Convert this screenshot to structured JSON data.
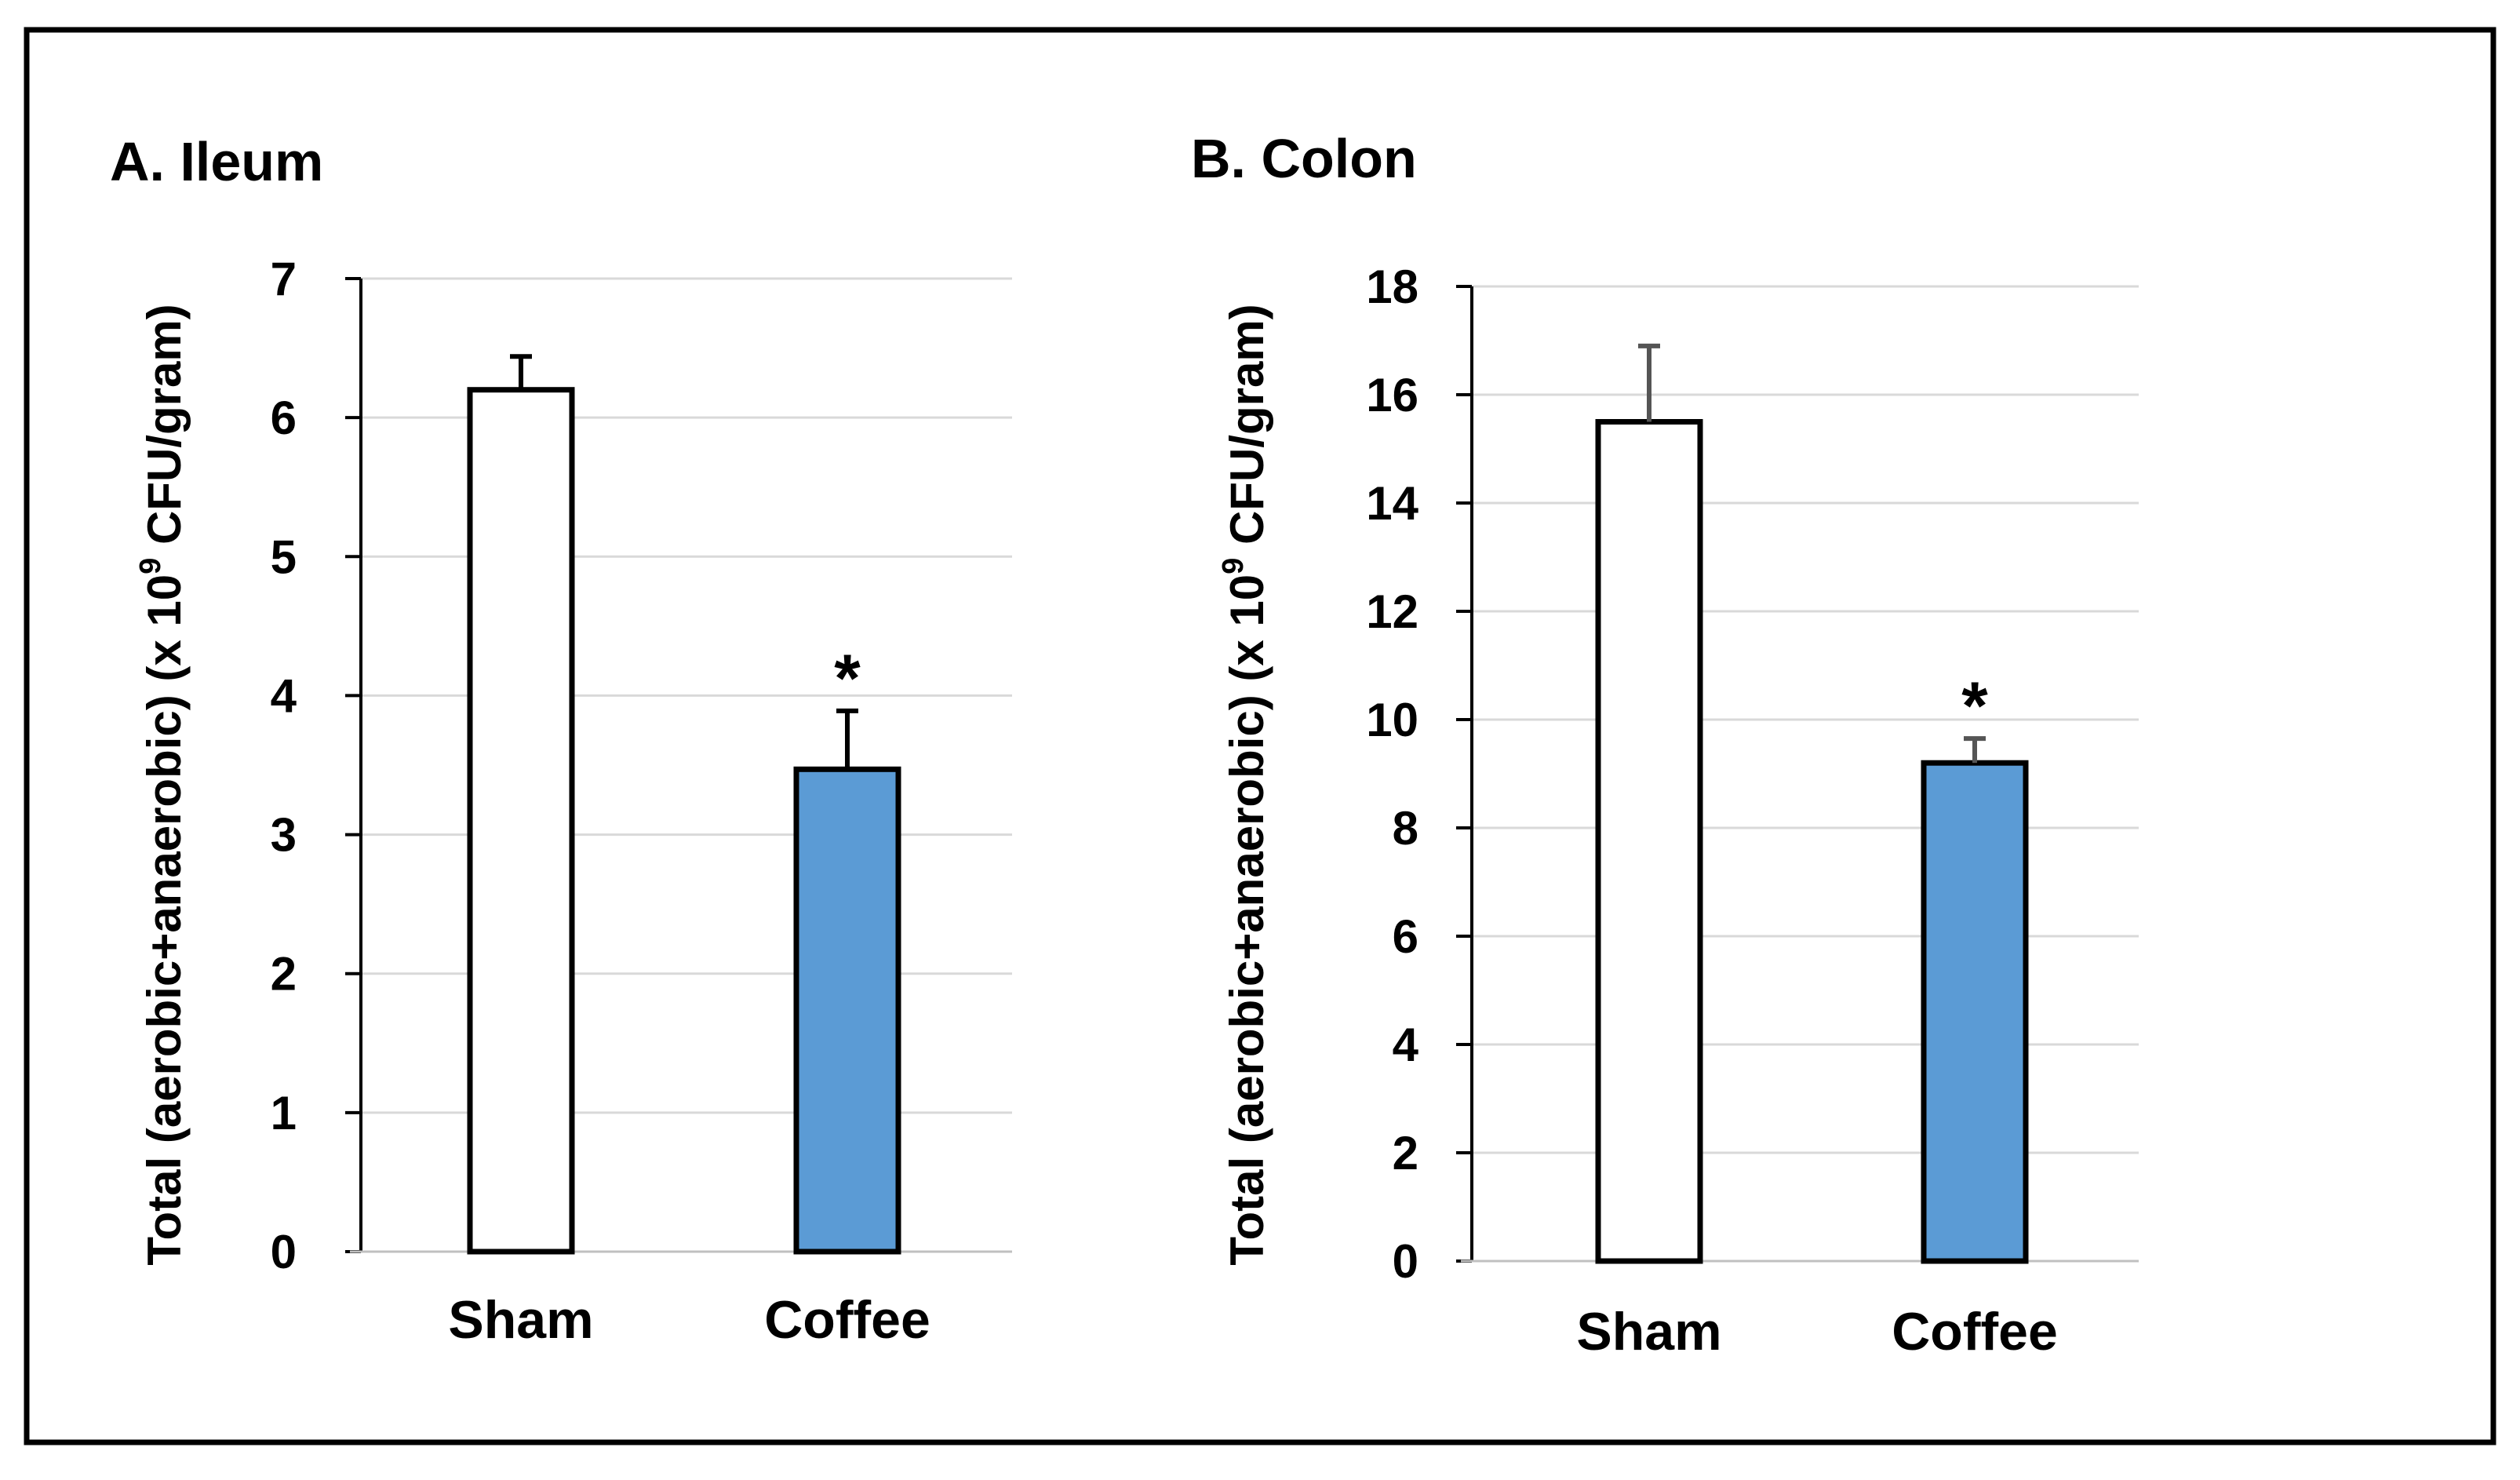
{
  "figure": {
    "border_color": "#000000",
    "background": "#ffffff"
  },
  "chart_data": [
    {
      "type": "bar",
      "title": "A. Ileum",
      "xlabel": "",
      "ylabel": {
        "prefix": "Total (aerobic+anaerobic) (x 10",
        "superscript": "9",
        "suffix": " CFU/gram)"
      },
      "categories": [
        "Sham",
        "Coffee"
      ],
      "values": [
        6.2,
        3.47
      ],
      "errors": [
        0.24,
        0.42
      ],
      "significance": [
        "",
        "*"
      ],
      "bar_colors": [
        "#ffffff",
        "#5b9bd5"
      ],
      "ylim": [
        0,
        7
      ],
      "yticks": [
        0,
        1,
        2,
        3,
        4,
        5,
        6,
        7
      ],
      "grid": true
    },
    {
      "type": "bar",
      "title": "B. Colon",
      "xlabel": "",
      "ylabel": {
        "prefix": "Total (aerobic+anaerobic) (x 10",
        "superscript": "9",
        "suffix": " CFU/gram)"
      },
      "categories": [
        "Sham",
        "Coffee"
      ],
      "values": [
        15.5,
        9.2
      ],
      "errors": [
        1.4,
        0.45
      ],
      "significance": [
        "",
        "*"
      ],
      "bar_colors": [
        "#ffffff",
        "#5b9bd5"
      ],
      "ylim": [
        0,
        18
      ],
      "yticks": [
        0,
        2,
        4,
        6,
        8,
        10,
        12,
        14,
        16,
        18
      ],
      "grid": true
    }
  ]
}
